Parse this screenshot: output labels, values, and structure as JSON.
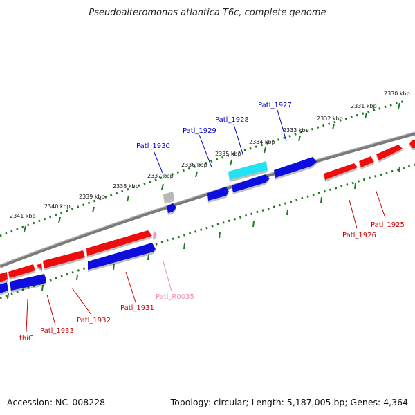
{
  "title": "Pseudoalteromonas atlantica T6c, complete genome",
  "footer": {
    "accession": "Accession: NC_008228",
    "summary": "Topology: circular; Length: 5,187,005 bp; Genes: 4,364"
  },
  "colors": {
    "forward_gene": "#ee1111",
    "reverse_gene": "#1111dd",
    "rna": "#f39ac0",
    "cyan_gene": "#22e4f0",
    "pseudo_gene": "#b8b8b8",
    "backbone": "#7a7a7a",
    "tick": "#1f7a1f",
    "label_red": "#cc0000",
    "label_blue": "#0000cc",
    "label_pink": "#f08cb4"
  },
  "scale_ticks": [
    "2330 kbp",
    "2331 kbp",
    "2332 kbp",
    "2333 kbp",
    "2334 kbp",
    "2335 kbp",
    "2336 kbp",
    "2337 kbp",
    "2338 kbp",
    "2339 kbp",
    "2340 kbp",
    "2341 kbp"
  ],
  "gene_labels": {
    "patl_1925": "Patl_1925",
    "patl_1926": "Patl_1926",
    "patl_1927": "Patl_1927",
    "patl_1928": "Patl_1928",
    "patl_1929": "Patl_1929",
    "patl_1930": "Patl_1930",
    "patl_1931": "Patl_1931",
    "patl_1932": "Patl_1932",
    "patl_1933": "Patl_1933",
    "patl_r0035": "Patl_R0035",
    "thig": "thiG"
  }
}
